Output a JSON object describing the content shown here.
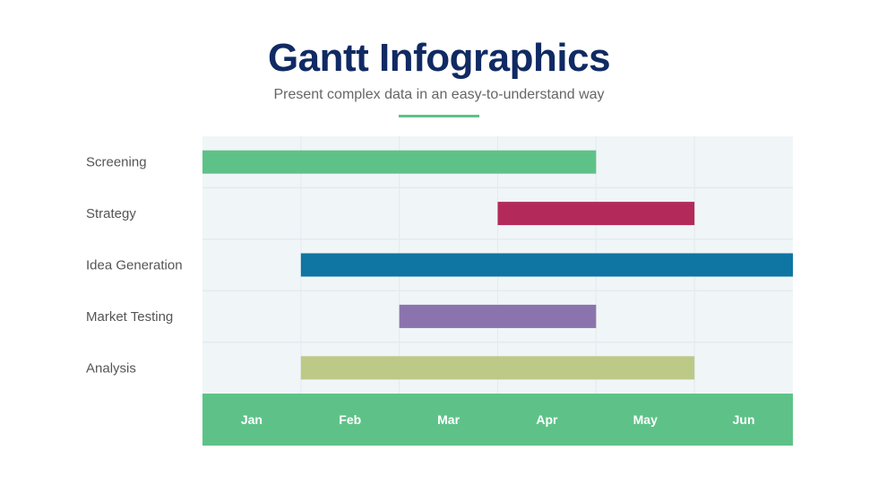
{
  "title": "Gantt Infographics",
  "subtitle": "Present complex data in an easy-to-understand way",
  "chart_data": {
    "type": "bar",
    "orientation": "horizontal-gantt",
    "categories": [
      "Screening",
      "Strategy",
      "Idea Generation",
      "Market Testing",
      "Analysis"
    ],
    "months": [
      "Jan",
      "Feb",
      "Mar",
      "Apr",
      "May",
      "Jun"
    ],
    "tasks": [
      {
        "name": "Screening",
        "start": "Jan",
        "end": "Apr",
        "color": "#5ec288"
      },
      {
        "name": "Strategy",
        "start": "Apr",
        "end": "May",
        "color": "#b32a5a"
      },
      {
        "name": "Idea Generation",
        "start": "Feb",
        "end": "Jun",
        "color": "#0f75a3"
      },
      {
        "name": "Market Testing",
        "start": "Mar",
        "end": "Apr",
        "color": "#8b74ad"
      },
      {
        "name": "Analysis",
        "start": "Feb",
        "end": "May",
        "color": "#bdc986"
      }
    ],
    "axis_color": "#5ec288",
    "grid": true
  }
}
